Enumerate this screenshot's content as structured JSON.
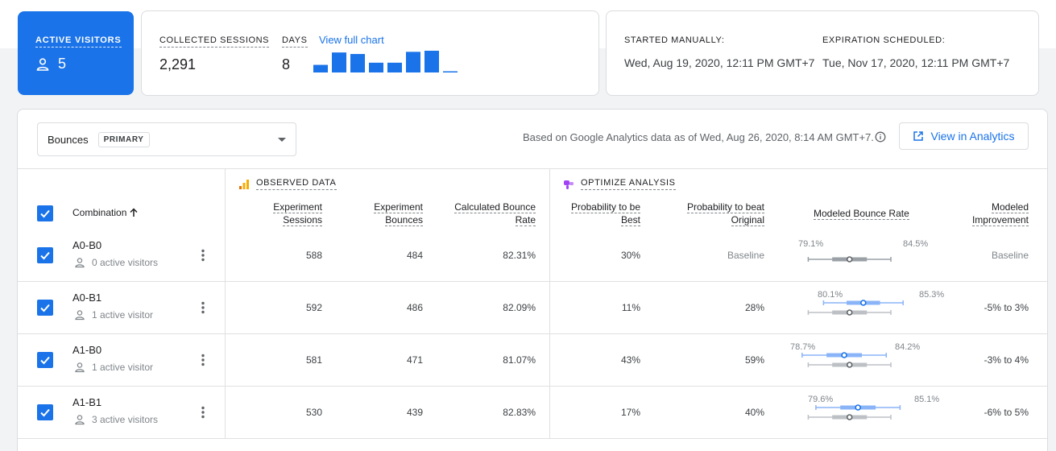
{
  "active": {
    "label": "ACTIVE VISITORS",
    "count": "5",
    "icon": "person-icon"
  },
  "sessions": {
    "label": "COLLECTED SESSIONS",
    "value": "2,291",
    "days_label": "DAYS",
    "days_value": "8",
    "view_full_chart": "View full chart",
    "daily_sessions_relative": [
      0.35,
      0.92,
      0.85,
      0.45,
      0.45,
      0.95,
      1.0,
      0.04
    ]
  },
  "dates": {
    "started_label": "STARTED MANUALLY:",
    "started_value": "Wed, Aug 19, 2020, 12:11 PM GMT+7",
    "expiration_label": "EXPIRATION SCHEDULED:",
    "expiration_value": "Tue, Nov 17, 2020, 12:11 PM GMT+7"
  },
  "toolbar": {
    "metric": "Bounces",
    "metric_chip": "PRIMARY",
    "based_on": "Based on Google Analytics data as of Wed, Aug 26, 2020, 8:14 AM GMT+7.",
    "view_in_analytics": "View in Analytics"
  },
  "groups": {
    "observed": "OBSERVED DATA",
    "optimize": "OPTIMIZE ANALYSIS"
  },
  "columns": {
    "combination": "Combination",
    "exp_sessions_1": "Experiment",
    "exp_sessions_2": "Sessions",
    "exp_bounces_1": "Experiment",
    "exp_bounces_2": "Bounces",
    "calc_rate_1": "Calculated Bounce",
    "calc_rate_2": "Rate",
    "prob_best_1": "Probability to be",
    "prob_best_2": "Best",
    "prob_beat_1": "Probability to beat",
    "prob_beat_2": "Original",
    "modeled_rate": "Modeled Bounce Rate",
    "modeled_imp_1": "Modeled",
    "modeled_imp_2": "Improvement"
  },
  "colors": {
    "accent": "#1a73e8",
    "ci_variant": "#8ab4f8",
    "ci_baseline": "#9aa0a6"
  },
  "rows": [
    {
      "name": "A0-B0",
      "visitors": "0 active visitors",
      "sessions": "588",
      "bounces": "484",
      "rate": "82.31%",
      "prob_best": "30%",
      "prob_beat": "Baseline",
      "ci_low": "79.1%",
      "ci_high": "84.5%",
      "improvement": "Baseline",
      "baseline": true
    },
    {
      "name": "A0-B1",
      "visitors": "1 active visitor",
      "sessions": "592",
      "bounces": "486",
      "rate": "82.09%",
      "prob_best": "11%",
      "prob_beat": "28%",
      "ci_low": "80.1%",
      "ci_high": "85.3%",
      "improvement": "-5% to 3%",
      "baseline": false
    },
    {
      "name": "A1-B0",
      "visitors": "1 active visitor",
      "sessions": "581",
      "bounces": "471",
      "rate": "81.07%",
      "prob_best": "43%",
      "prob_beat": "59%",
      "ci_low": "78.7%",
      "ci_high": "84.2%",
      "improvement": "-3% to 4%",
      "baseline": false
    },
    {
      "name": "A1-B1",
      "visitors": "3 active visitors",
      "sessions": "530",
      "bounces": "439",
      "rate": "82.83%",
      "prob_best": "17%",
      "prob_beat": "40%",
      "ci_low": "79.6%",
      "ci_high": "85.1%",
      "improvement": "-6% to 5%",
      "baseline": false
    }
  ]
}
